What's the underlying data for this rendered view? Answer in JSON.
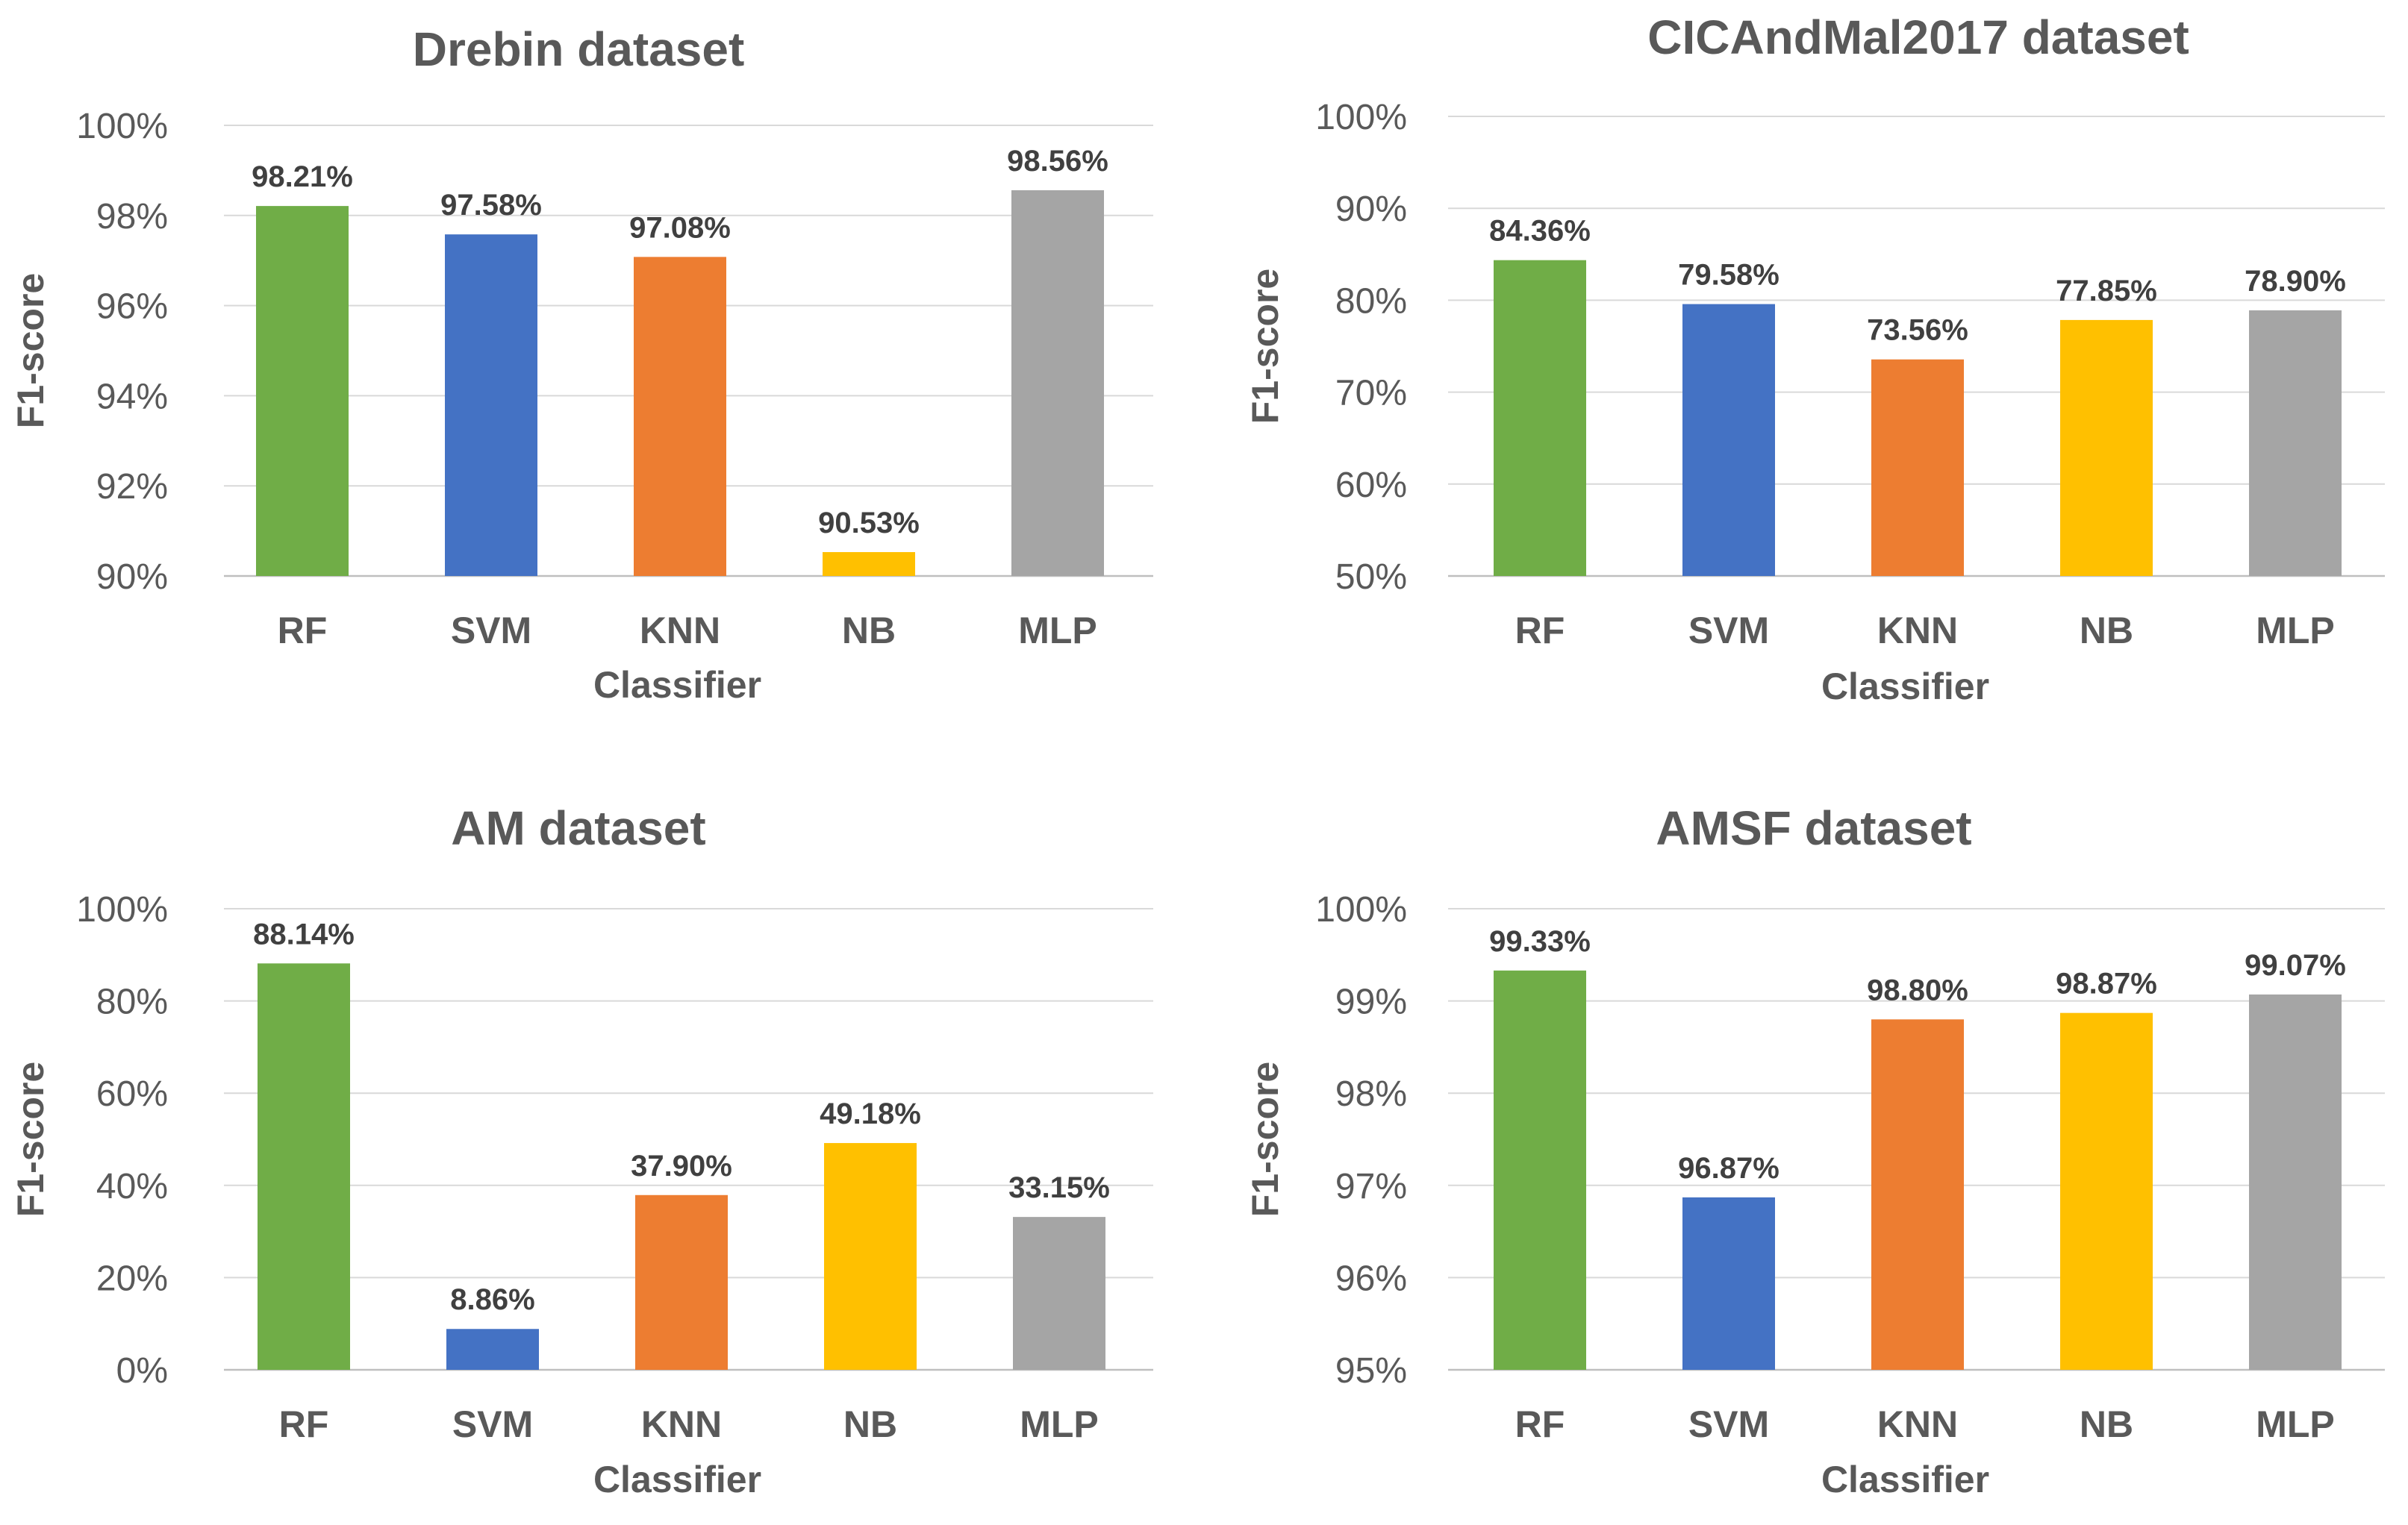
{
  "chart_data": [
    {
      "type": "bar",
      "title": "Drebin dataset",
      "xlabel": "Classifier",
      "ylabel": "F1-score",
      "categories": [
        "RF",
        "SVM",
        "KNN",
        "NB",
        "MLP"
      ],
      "values": [
        98.21,
        97.58,
        97.08,
        90.53,
        98.56
      ],
      "data_labels": [
        "98.21%",
        "97.58%",
        "97.08%",
        "90.53%",
        "98.56%"
      ],
      "ylim": [
        90,
        100
      ],
      "yticks": [
        "90%",
        "92%",
        "94%",
        "96%",
        "98%",
        "100%"
      ],
      "grid": true,
      "legend": "none"
    },
    {
      "type": "bar",
      "title": "CICAndMal2017 dataset",
      "xlabel": "Classifier",
      "ylabel": "F1-score",
      "categories": [
        "RF",
        "SVM",
        "KNN",
        "NB",
        "MLP"
      ],
      "values": [
        84.36,
        79.58,
        73.56,
        77.85,
        78.9
      ],
      "data_labels": [
        "84.36%",
        "79.58%",
        "73.56%",
        "77.85%",
        "78.90%"
      ],
      "ylim": [
        50,
        100
      ],
      "yticks": [
        "50%",
        "60%",
        "70%",
        "80%",
        "90%",
        "100%"
      ],
      "grid": true,
      "legend": "none"
    },
    {
      "type": "bar",
      "title": "AM dataset",
      "xlabel": "Classifier",
      "ylabel": "F1-score",
      "categories": [
        "RF",
        "SVM",
        "KNN",
        "NB",
        "MLP"
      ],
      "values": [
        88.14,
        8.86,
        37.9,
        49.18,
        33.15
      ],
      "data_labels": [
        "88.14%",
        "8.86%",
        "37.90%",
        "49.18%",
        "33.15%"
      ],
      "ylim": [
        0,
        100
      ],
      "yticks": [
        "0%",
        "20%",
        "40%",
        "60%",
        "80%",
        "100%"
      ],
      "grid": true,
      "legend": "none"
    },
    {
      "type": "bar",
      "title": "AMSF dataset",
      "xlabel": "Classifier",
      "ylabel": "F1-score",
      "categories": [
        "RF",
        "SVM",
        "KNN",
        "NB",
        "MLP"
      ],
      "values": [
        99.33,
        96.87,
        98.8,
        98.87,
        99.07
      ],
      "data_labels": [
        "99.33%",
        "96.87%",
        "98.80%",
        "98.87%",
        "99.07%"
      ],
      "ylim": [
        95,
        100
      ],
      "yticks": [
        "95%",
        "96%",
        "97%",
        "98%",
        "99%",
        "100%"
      ],
      "grid": true,
      "legend": "none"
    }
  ],
  "colors": {
    "RF": "#70ad47",
    "SVM": "#4472c4",
    "KNN": "#ed7d31",
    "NB": "#ffc000",
    "MLP": "#a5a5a5"
  }
}
